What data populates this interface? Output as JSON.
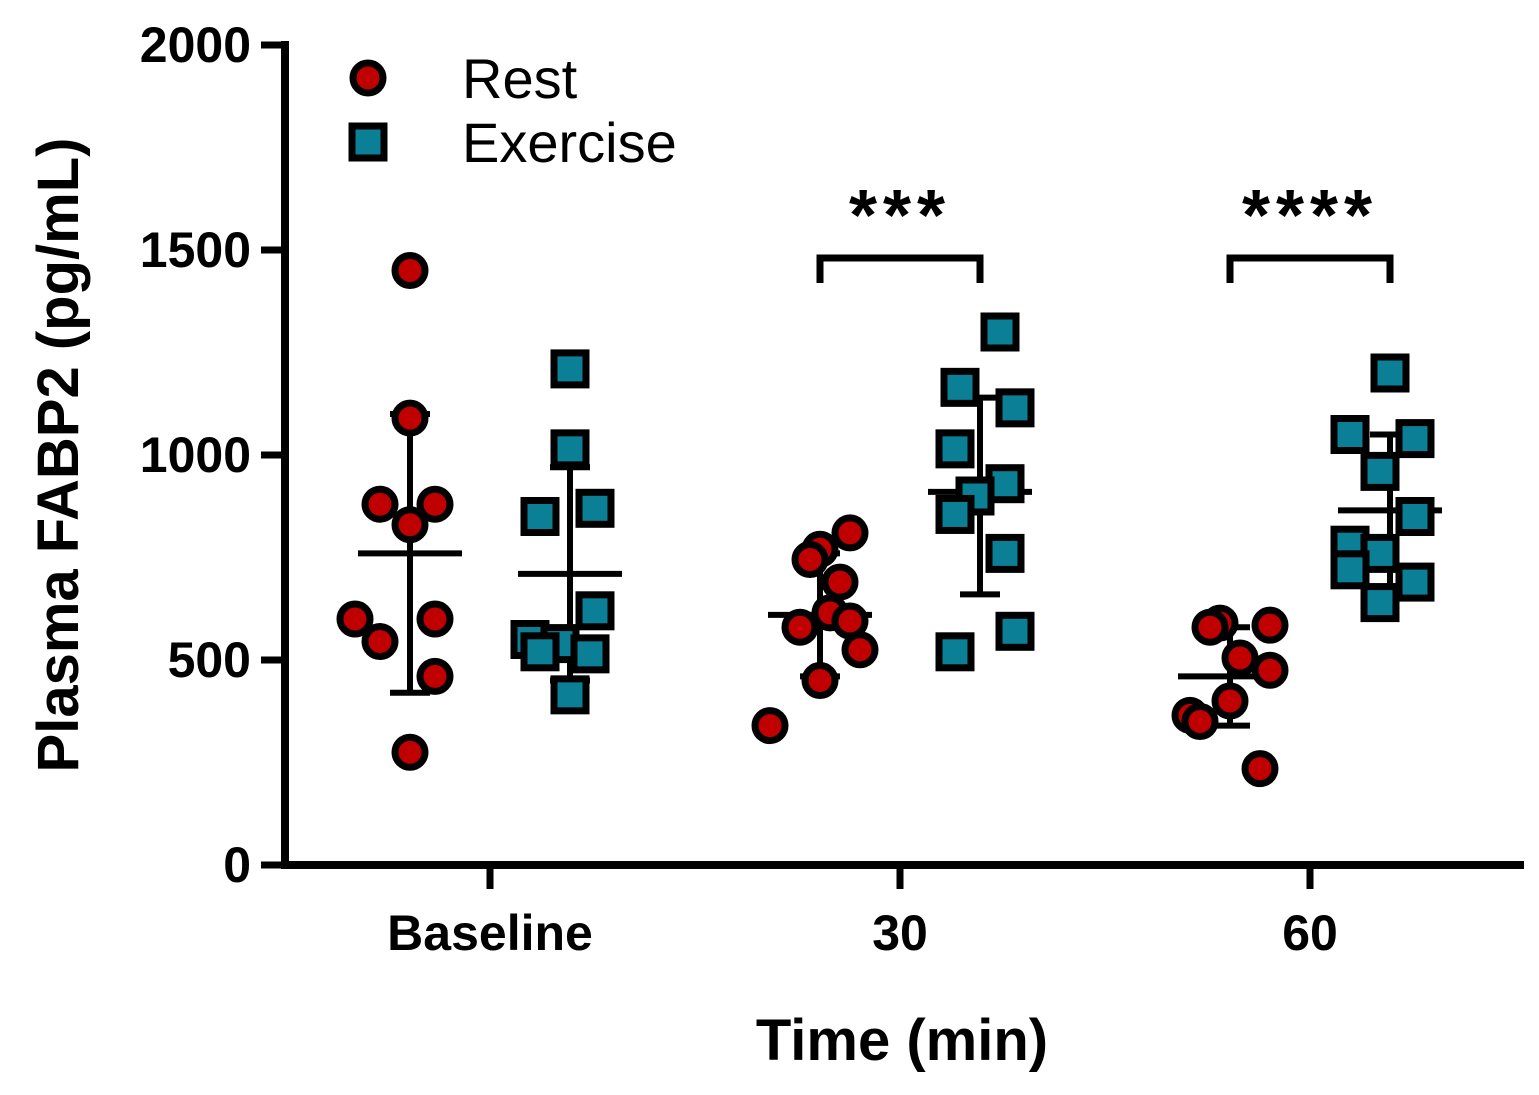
{
  "chart_data": {
    "type": "scatter",
    "title": "",
    "xlabel": "Time (min)",
    "ylabel": "Plasma FABP2 (pg/mL)",
    "ylim": [
      0,
      2000
    ],
    "y_ticks": [
      "0",
      "500",
      "1000",
      "1500",
      "2000"
    ],
    "y_tick_values": [
      0,
      500,
      1000,
      1500,
      2000
    ],
    "categories": [
      "Baseline",
      "30",
      "60"
    ],
    "legend_position": "top-left",
    "series": [
      {
        "name": "Rest",
        "marker": "circle",
        "color": "#c00000",
        "points": [
          [
            1450,
            1090,
            880,
            880,
            830,
            600,
            600,
            545,
            460,
            275
          ],
          [
            770,
            810,
            745,
            690,
            615,
            595,
            580,
            525,
            450,
            340
          ],
          [
            590,
            585,
            580,
            505,
            475,
            400,
            365,
            350,
            235
          ]
        ],
        "mean": [
          760,
          610,
          460
        ],
        "sd_upper": [
          1100,
          760,
          580
        ],
        "sd_lower": [
          420,
          460,
          340
        ]
      },
      {
        "name": "Exercise",
        "marker": "square",
        "color": "#0a7f95",
        "points": [
          [
            1210,
            1015,
            870,
            850,
            620,
            550,
            540,
            520,
            515,
            415
          ],
          [
            1300,
            1165,
            1115,
            1015,
            930,
            900,
            855,
            760,
            570,
            520
          ],
          [
            1200,
            1050,
            1040,
            960,
            850,
            780,
            760,
            720,
            690,
            640
          ]
        ],
        "mean": [
          710,
          910,
          865
        ],
        "sd_upper": [
          970,
          1140,
          1050
        ],
        "sd_lower": [
          450,
          660,
          680
        ]
      }
    ],
    "annotations": [
      {
        "category": "30",
        "text": "***"
      },
      {
        "category": "60",
        "text": "****"
      }
    ]
  }
}
